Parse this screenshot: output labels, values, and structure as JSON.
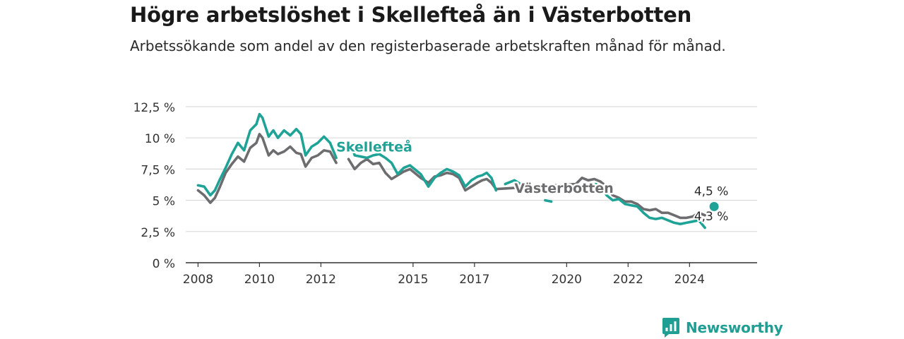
{
  "title": "Högre arbetslöshet i Skellefteå än i Västerbotten",
  "subtitle": "Arbetssökande som andel av den registerbaserade arbetskraften månad för månad.",
  "brand": {
    "name": "Newsworthy",
    "icon": "bar-chart-speech-bubble-icon",
    "color": "#1f9e93"
  },
  "chart_data": {
    "type": "line",
    "x_unit": "year",
    "xlim": [
      2007.6,
      2026.2
    ],
    "ylim": [
      0,
      12.5
    ],
    "y_ticks": [
      0,
      2.5,
      5,
      7.5,
      10,
      12.5
    ],
    "y_tick_labels": [
      "0 %",
      "2,5 %",
      "5 %",
      "7,5 %",
      "10 %",
      "12,5 %"
    ],
    "x_ticks": [
      2008,
      2010,
      2012,
      2015,
      2017,
      2020,
      2022,
      2024
    ],
    "x_tick_labels": [
      "2008",
      "2010",
      "2012",
      "2015",
      "2017",
      "2020",
      "2022",
      "2024"
    ],
    "grid": true,
    "series": [
      {
        "name": "Skellefteå",
        "color": "#1fa396",
        "x": [
          2008.0,
          2008.2,
          2008.4,
          2008.55,
          2008.7,
          2008.9,
          2009.1,
          2009.3,
          2009.5,
          2009.7,
          2009.9,
          2010.0,
          2010.1,
          2010.3,
          2010.45,
          2010.6,
          2010.8,
          2011.0,
          2011.2,
          2011.35,
          2011.5,
          2011.7,
          2011.9,
          2012.1,
          2012.3,
          2012.5,
          2012.85,
          2013.0,
          2013.1,
          2013.3,
          2013.5,
          2013.7,
          2013.9,
          2014.1,
          2014.3,
          2014.5,
          2014.7,
          2014.9,
          2015.1,
          2015.25,
          2015.5,
          2015.7,
          2015.9,
          2016.1,
          2016.3,
          2016.5,
          2016.7,
          2016.9,
          2017.1,
          2017.25,
          2017.4,
          2017.55,
          2017.7,
          2018.0,
          2018.3,
          2018.5,
          2019.3,
          2019.5,
          2020.35,
          2020.55,
          2020.75,
          2020.95,
          2021.1,
          2021.3,
          2021.5,
          2021.7,
          2021.9,
          2022.1,
          2022.3,
          2022.5,
          2022.7,
          2022.9,
          2023.1,
          2023.3,
          2023.5,
          2023.7,
          2023.9,
          2024.1,
          2024.3,
          2024.5
        ],
        "y": [
          6.2,
          6.1,
          5.4,
          5.8,
          6.6,
          7.6,
          8.7,
          9.6,
          9.0,
          10.6,
          11.1,
          11.9,
          11.6,
          10.1,
          10.6,
          10.0,
          10.6,
          10.2,
          10.7,
          10.3,
          8.6,
          9.3,
          9.6,
          10.1,
          9.6,
          8.4,
          9.7,
          9.4,
          8.6,
          8.5,
          8.4,
          8.6,
          8.7,
          8.4,
          8.0,
          7.1,
          7.6,
          7.8,
          7.4,
          7.1,
          6.1,
          6.8,
          7.2,
          7.5,
          7.3,
          7.0,
          6.1,
          6.6,
          6.9,
          7.0,
          7.2,
          6.8,
          5.8,
          6.3,
          6.6,
          6.3,
          5.0,
          4.9,
          6.0,
          6.2,
          6.0,
          6.3,
          6.1,
          5.4,
          5.0,
          5.1,
          4.7,
          4.6,
          4.5,
          4.0,
          3.6,
          3.5,
          3.6,
          3.4,
          3.2,
          3.1,
          3.2,
          3.3,
          3.4,
          2.8
        ],
        "breaks": [
          26,
          53,
          56,
          58
        ]
      },
      {
        "name": "Västerbotten",
        "color": "#6d6d70",
        "x": [
          2008.0,
          2008.2,
          2008.4,
          2008.55,
          2008.7,
          2008.9,
          2009.1,
          2009.3,
          2009.5,
          2009.7,
          2009.9,
          2010.0,
          2010.1,
          2010.3,
          2010.45,
          2010.6,
          2010.8,
          2011.0,
          2011.2,
          2011.35,
          2011.5,
          2011.7,
          2011.9,
          2012.1,
          2012.3,
          2012.5,
          2012.9,
          2013.1,
          2013.3,
          2013.5,
          2013.7,
          2013.9,
          2014.1,
          2014.3,
          2014.5,
          2014.7,
          2014.9,
          2015.1,
          2015.25,
          2015.5,
          2015.7,
          2015.9,
          2016.1,
          2016.3,
          2016.5,
          2016.7,
          2016.9,
          2017.1,
          2017.25,
          2017.4,
          2017.55,
          2017.7,
          2020.3,
          2020.5,
          2020.7,
          2020.9,
          2021.1,
          2021.3,
          2021.5,
          2021.7,
          2021.9,
          2022.1,
          2022.3,
          2022.5,
          2022.7,
          2022.9,
          2023.1,
          2023.3,
          2023.5,
          2023.7,
          2023.9,
          2024.1,
          2024.3,
          2024.5
        ],
        "y": [
          5.8,
          5.4,
          4.8,
          5.2,
          6.0,
          7.2,
          7.9,
          8.5,
          8.1,
          9.2,
          9.6,
          10.3,
          10.0,
          8.6,
          9.0,
          8.7,
          8.9,
          9.3,
          8.8,
          8.7,
          7.7,
          8.4,
          8.6,
          9.0,
          8.9,
          8.0,
          8.3,
          7.5,
          8.0,
          8.3,
          7.9,
          8.0,
          7.2,
          6.7,
          7.0,
          7.3,
          7.5,
          7.1,
          6.8,
          6.4,
          6.9,
          7.0,
          7.2,
          7.1,
          6.8,
          5.8,
          6.1,
          6.4,
          6.6,
          6.7,
          6.4,
          5.9,
          6.3,
          6.8,
          6.6,
          6.7,
          6.5,
          6.1,
          5.4,
          5.2,
          4.9,
          4.9,
          4.7,
          4.3,
          4.2,
          4.3,
          4.0,
          4.0,
          3.8,
          3.6,
          3.6,
          3.7,
          4.0,
          3.8
        ],
        "breaks": [
          26
        ]
      }
    ],
    "series_labels": [
      {
        "series": "Skellefteå",
        "text": "Skellefteå",
        "x": 2012.5,
        "y": 8.9
      },
      {
        "series": "Västerbotten",
        "text": "Västerbotten",
        "x": 2018.3,
        "y": 5.6
      }
    ],
    "end_point": {
      "series": "Skellefteå",
      "x": 2024.8,
      "y": 4.5
    },
    "value_labels": [
      {
        "text": "4,5 %",
        "series": "Skellefteå",
        "x": 2024.15,
        "y": 5.4
      },
      {
        "text": "4,3 %",
        "series": "Västerbotten",
        "x": 2024.15,
        "y": 3.4
      }
    ]
  }
}
